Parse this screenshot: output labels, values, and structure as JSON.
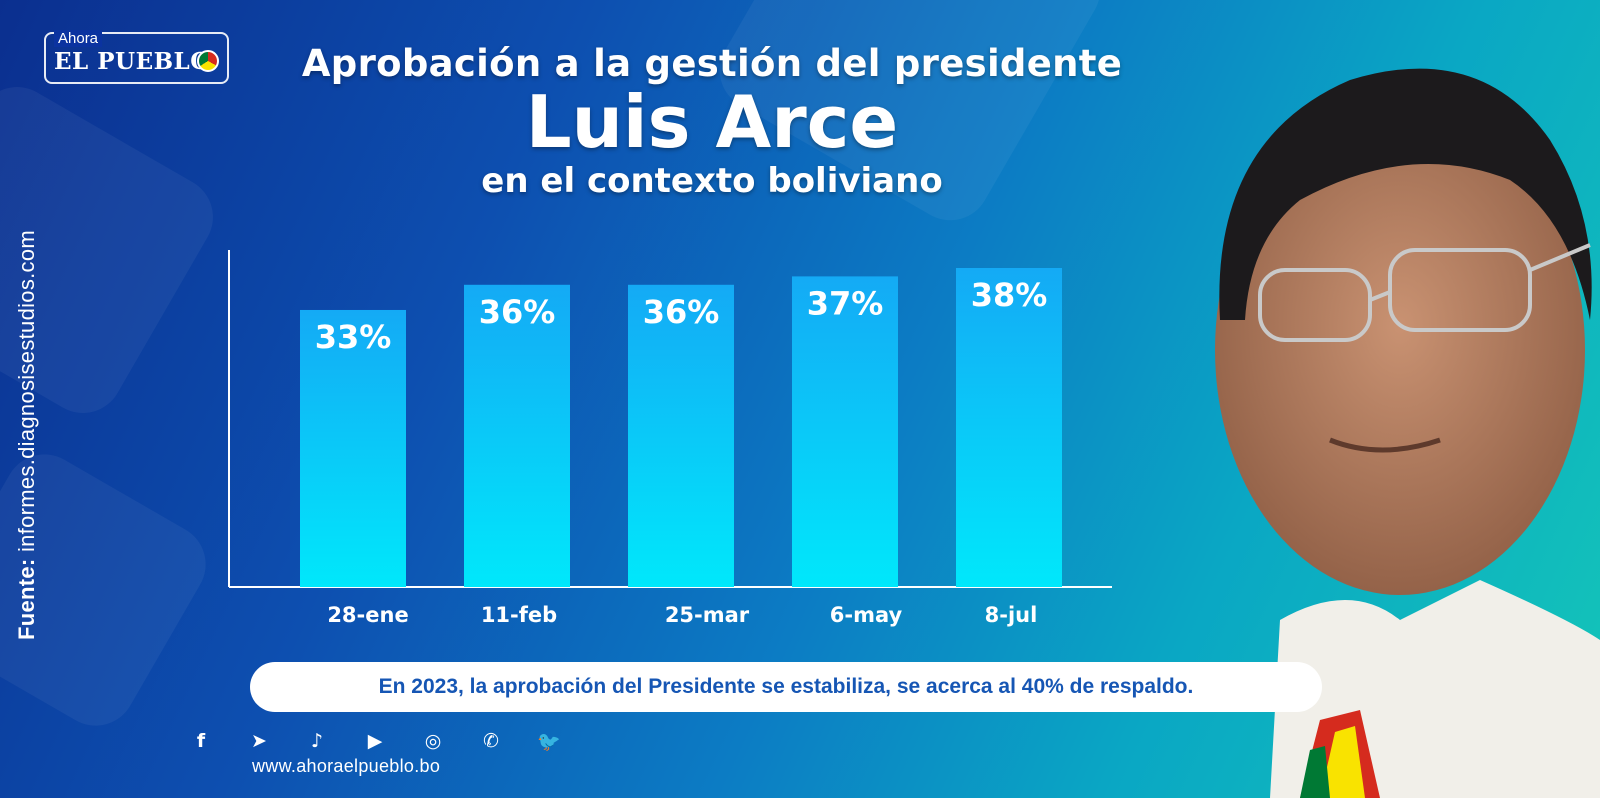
{
  "logo": {
    "small": "Ahora",
    "main": "EL PUEBLO"
  },
  "source": {
    "label": "Fuente:",
    "text": " informes.diagnosisestudios.com"
  },
  "title": {
    "line1": "Aprobación a la gestión del presidente",
    "line2": "Luis Arce",
    "line3": "en el contexto boliviano"
  },
  "chart_data": {
    "type": "bar",
    "categories": [
      "28-ene",
      "11-feb",
      "25-mar",
      "6-may",
      "8-jul"
    ],
    "values": [
      33,
      36,
      36,
      37,
      38
    ],
    "value_labels": [
      "33%",
      "36%",
      "36%",
      "37%",
      "38%"
    ],
    "ylim": [
      0,
      38
    ],
    "grid": false,
    "bar_color_top": "#14aaf5",
    "bar_color_bottom": "#00e8fb"
  },
  "note": "En 2023, la aprobación del Presidente se estabiliza, se acerca al 40% de respaldo.",
  "social_icons": [
    "facebook-icon",
    "telegram-icon",
    "tiktok-icon",
    "youtube-icon",
    "instagram-icon",
    "whatsapp-icon",
    "twitter-icon"
  ],
  "website": "www.ahoraelpueblo.bo"
}
